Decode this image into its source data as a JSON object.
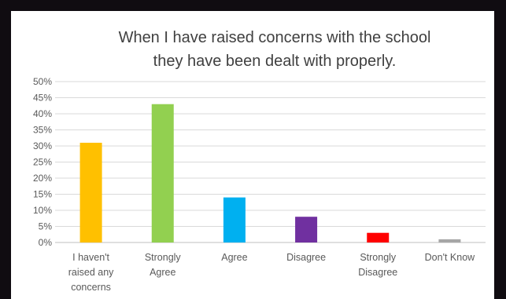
{
  "chart_data": {
    "type": "bar",
    "title_lines": [
      "When I have raised concerns with the school",
      "they have been dealt with properly."
    ],
    "categories": [
      [
        "I haven't",
        "raised any",
        "concerns"
      ],
      [
        "Strongly",
        "Agree"
      ],
      [
        "Agree"
      ],
      [
        "Disagree"
      ],
      [
        "Strongly",
        "Disagree"
      ],
      [
        "Don't Know"
      ]
    ],
    "values": [
      31,
      43,
      14,
      8,
      3,
      1
    ],
    "colors": [
      "#ffc000",
      "#92d050",
      "#00b0f0",
      "#7030a0",
      "#ff0000",
      "#a6a6a6"
    ],
    "yticks": [
      "0%",
      "5%",
      "10%",
      "15%",
      "20%",
      "25%",
      "30%",
      "35%",
      "40%",
      "45%",
      "50%"
    ],
    "ylim": [
      0,
      50
    ],
    "grid": true,
    "legend": "none"
  }
}
